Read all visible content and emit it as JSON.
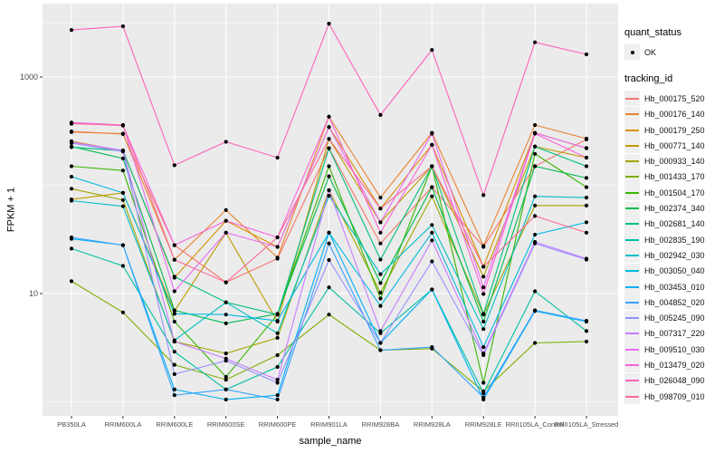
{
  "chart_data": {
    "type": "line",
    "title": "",
    "xlabel": "sample_name",
    "ylabel": "FPKM + 1",
    "y_scale": "log10",
    "axis": {
      "y_ticks": [
        {
          "value": 10,
          "label": "10"
        },
        {
          "value": 1000,
          "label": "1000"
        }
      ],
      "y_minor": [
        1,
        100,
        3162
      ],
      "ylim_log": [
        -0.13,
        3.678
      ],
      "grid": "on",
      "legend_position": "right"
    },
    "categories": [
      "PB350LA",
      "RRIM600LA",
      "RRIM600LE",
      "RRIM600SE",
      "RRIM600PE",
      "RRIM901LA",
      "RRIM928BA",
      "RRIM928LA",
      "RRIM928LE",
      "RRII105LA_Control",
      "RRII105LA_Stressed"
    ],
    "series": [
      {
        "name": "Hb_000175_520",
        "color": "#F8766D",
        "values": [
          315,
          297,
          28,
          12.7,
          21,
          220,
          29,
          96,
          27,
          150,
          265
        ]
      },
      {
        "name": "Hb_000176_140",
        "color": "#EA8331",
        "values": [
          310,
          300,
          20.5,
          59,
          21.5,
          430,
          77,
          305,
          27.5,
          360,
          270
        ]
      },
      {
        "name": "Hb_000179_250",
        "color": "#D89000",
        "values": [
          255,
          208,
          14,
          47,
          27,
          345,
          61,
          236,
          17.7,
          305,
          220
        ]
      },
      {
        "name": "Hb_000771_140",
        "color": "#C09B00",
        "values": [
          74,
          85,
          6.9,
          36.5,
          5.5,
          268,
          45.5,
          150,
          14.3,
          228,
          180
        ]
      },
      {
        "name": "Hb_000933_140",
        "color": "#A3A500",
        "values": [
          93,
          73,
          3.6,
          2.8,
          3.9,
          90,
          10.2,
          79,
          6.4,
          65,
          65
        ]
      },
      {
        "name": "Hb_001433_170",
        "color": "#7CAE00",
        "values": [
          13,
          6.7,
          2.2,
          1.6,
          2.7,
          6.4,
          3.0,
          3.1,
          1.25,
          3.5,
          3.6
        ]
      },
      {
        "name": "Hb_001504_170",
        "color": "#39B600",
        "values": [
          150,
          137,
          5.5,
          1.7,
          6.4,
          150,
          9.0,
          150,
          1.5,
          195,
          96
        ]
      },
      {
        "name": "Hb_002374_340",
        "color": "#00BB4E",
        "values": [
          228,
          177,
          7.0,
          5.3,
          6.5,
          121,
          12.5,
          96,
          5.5,
          150,
          117
        ]
      },
      {
        "name": "Hb_002681_140",
        "color": "#00BF7D",
        "values": [
          225,
          208,
          14.3,
          8.3,
          6.4,
          220,
          20.6,
          150,
          6.5,
          228,
          150
        ]
      },
      {
        "name": "Hb_002835_190",
        "color": "#00C1A3",
        "values": [
          26,
          18,
          2.9,
          1.3,
          2.1,
          11.4,
          4.3,
          10.9,
          1.2,
          10.5,
          4.5
        ]
      },
      {
        "name": "Hb_002942_030",
        "color": "#00BFC4",
        "values": [
          72,
          64,
          3.7,
          8.3,
          4.3,
          80,
          15.1,
          43,
          4.7,
          79,
          77
        ]
      },
      {
        "name": "Hb_003050_040",
        "color": "#00BAE0",
        "values": [
          120,
          85,
          6.5,
          6.4,
          5.6,
          36.5,
          7.7,
          36.5,
          3.2,
          35,
          45.5
        ]
      },
      {
        "name": "Hb_003453_010",
        "color": "#00B0F6",
        "values": [
          32,
          28,
          1.3,
          1.05,
          1.15,
          36.5,
          3.5,
          10.9,
          1.05,
          6.9,
          5.5
        ]
      },
      {
        "name": "Hb_004852_020",
        "color": "#35A2FF",
        "values": [
          33,
          28,
          1.15,
          1.3,
          1.05,
          29,
          3.0,
          3.2,
          1.1,
          7.0,
          5.6
        ]
      },
      {
        "name": "Hb_005245_090",
        "color": "#9590FF",
        "values": [
          245,
          205,
          1.8,
          2.4,
          1.5,
          20.4,
          3.5,
          19.8,
          2.7,
          29,
          20.6
        ]
      },
      {
        "name": "Hb_007317_220",
        "color": "#C77CFF",
        "values": [
          250,
          210,
          3.6,
          2.5,
          1.6,
          90,
          4.5,
          31,
          2.8,
          30,
          21
        ]
      },
      {
        "name": "Hb_009510_030",
        "color": "#E76BF3",
        "values": [
          380,
          360,
          10.5,
          36.5,
          27,
          345,
          45.5,
          300,
          11.4,
          304,
          221
        ]
      },
      {
        "name": "Hb_013479_020",
        "color": "#FA62DB",
        "values": [
          375,
          355,
          28,
          47,
          33,
          430,
          36.5,
          236,
          9.9,
          300,
          180
        ]
      },
      {
        "name": "Hb_026048_090",
        "color": "#FF62BC",
        "values": [
          2720,
          2940,
          153,
          252,
          180,
          3110,
          446,
          1780,
          81,
          2090,
          1620
        ]
      },
      {
        "name": "Hb_098709_010",
        "color": "#FF6A98",
        "values": [
          370,
          360,
          20.5,
          12.7,
          33,
          268,
          61,
          150,
          17.7,
          52,
          36.5
        ]
      }
    ],
    "points": {
      "shape": "circle",
      "color": "#000000"
    }
  },
  "legend": {
    "quant_status_title": "quant_status",
    "quant_status_items": [
      {
        "label": "OK",
        "marker": "point",
        "color": "#000000"
      }
    ],
    "tracking_title": "tracking_id"
  },
  "style": {
    "panel_bg": "#EBEBEB",
    "grid_color": "#FFFFFF",
    "tick_text_color": "#4D4D4D",
    "axis_title_color": "#000000",
    "legend_key_bg": "#EFEFEF",
    "point_color": "#000000"
  }
}
